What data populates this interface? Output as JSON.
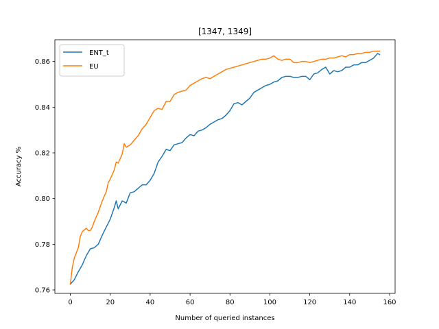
{
  "chart_data": {
    "type": "line",
    "title": "[1347, 1349]",
    "xlabel": "Number of queried instances",
    "ylabel": "Accuracy %",
    "xlim": [
      -7.75,
      162.75
    ],
    "ylim": [
      0.7585,
      0.8695
    ],
    "xticks": [
      0,
      20,
      40,
      60,
      80,
      100,
      120,
      140,
      160
    ],
    "yticks": [
      0.76,
      0.78,
      0.8,
      0.82,
      0.84,
      0.86
    ],
    "ytick_labels": [
      "0.76",
      "0.78",
      "0.80",
      "0.82",
      "0.84",
      "0.86"
    ],
    "grid": false,
    "legend_position": "upper-left",
    "series": [
      {
        "name": "ENT_t",
        "color": "#1f77b4",
        "x": [
          0,
          2,
          4,
          6,
          8,
          10,
          12,
          14,
          16,
          18,
          20,
          22,
          23,
          24,
          26,
          28,
          30,
          32,
          34,
          36,
          38,
          40,
          42,
          44,
          46,
          48,
          50,
          52,
          54,
          56,
          58,
          60,
          62,
          64,
          66,
          68,
          70,
          72,
          74,
          76,
          78,
          80,
          82,
          84,
          86,
          88,
          90,
          92,
          94,
          96,
          98,
          100,
          102,
          104,
          106,
          108,
          110,
          112,
          114,
          116,
          118,
          120,
          122,
          124,
          126,
          128,
          130,
          132,
          134,
          136,
          138,
          140,
          142,
          144,
          146,
          148,
          150,
          152,
          154,
          155
        ],
        "y": [
          0.7625,
          0.7645,
          0.768,
          0.771,
          0.775,
          0.778,
          0.7785,
          0.78,
          0.784,
          0.7875,
          0.791,
          0.796,
          0.799,
          0.7955,
          0.799,
          0.798,
          0.8025,
          0.803,
          0.8045,
          0.806,
          0.806,
          0.808,
          0.811,
          0.816,
          0.8185,
          0.8215,
          0.821,
          0.8235,
          0.824,
          0.8245,
          0.8265,
          0.828,
          0.8275,
          0.8295,
          0.83,
          0.831,
          0.8325,
          0.8335,
          0.8345,
          0.835,
          0.8365,
          0.8385,
          0.8415,
          0.842,
          0.841,
          0.8425,
          0.844,
          0.8465,
          0.8475,
          0.8485,
          0.8495,
          0.85,
          0.851,
          0.8515,
          0.853,
          0.8535,
          0.8535,
          0.853,
          0.853,
          0.8535,
          0.8535,
          0.852,
          0.8545,
          0.855,
          0.8565,
          0.8575,
          0.8545,
          0.856,
          0.8555,
          0.856,
          0.8575,
          0.8575,
          0.8585,
          0.8585,
          0.8595,
          0.8595,
          0.8605,
          0.8615,
          0.8635,
          0.863
        ]
      },
      {
        "name": "EU",
        "color": "#ff7f0e",
        "x": [
          0,
          1,
          2,
          4,
          5,
          6,
          8,
          9,
          10,
          11,
          12,
          14,
          16,
          18,
          19,
          20,
          22,
          23,
          24,
          26,
          27,
          28,
          30,
          32,
          34,
          36,
          38,
          40,
          42,
          44,
          46,
          48,
          50,
          52,
          54,
          56,
          58,
          60,
          62,
          64,
          66,
          68,
          70,
          72,
          74,
          76,
          78,
          80,
          82,
          84,
          86,
          88,
          90,
          92,
          94,
          96,
          98,
          100,
          102,
          104,
          106,
          108,
          110,
          112,
          114,
          116,
          118,
          120,
          122,
          124,
          126,
          128,
          130,
          132,
          134,
          136,
          138,
          140,
          142,
          144,
          146,
          148,
          150,
          152,
          154,
          155
        ],
        "y": [
          0.7625,
          0.77,
          0.774,
          0.7785,
          0.7835,
          0.7855,
          0.787,
          0.786,
          0.786,
          0.7875,
          0.79,
          0.794,
          0.799,
          0.803,
          0.807,
          0.8085,
          0.8125,
          0.816,
          0.8155,
          0.8195,
          0.824,
          0.8225,
          0.8235,
          0.8255,
          0.8275,
          0.8305,
          0.8325,
          0.8355,
          0.8385,
          0.8395,
          0.839,
          0.8425,
          0.8425,
          0.8455,
          0.8465,
          0.847,
          0.8475,
          0.8495,
          0.8505,
          0.8515,
          0.8525,
          0.853,
          0.8525,
          0.8535,
          0.8545,
          0.8555,
          0.8565,
          0.857,
          0.8575,
          0.858,
          0.8585,
          0.859,
          0.8595,
          0.86,
          0.8605,
          0.861,
          0.861,
          0.8615,
          0.8625,
          0.861,
          0.8605,
          0.861,
          0.861,
          0.8595,
          0.8595,
          0.86,
          0.86,
          0.8595,
          0.86,
          0.8605,
          0.861,
          0.861,
          0.8615,
          0.8615,
          0.862,
          0.8625,
          0.862,
          0.863,
          0.863,
          0.8635,
          0.8635,
          0.864,
          0.864,
          0.8645,
          0.8645,
          0.8645
        ]
      }
    ]
  }
}
